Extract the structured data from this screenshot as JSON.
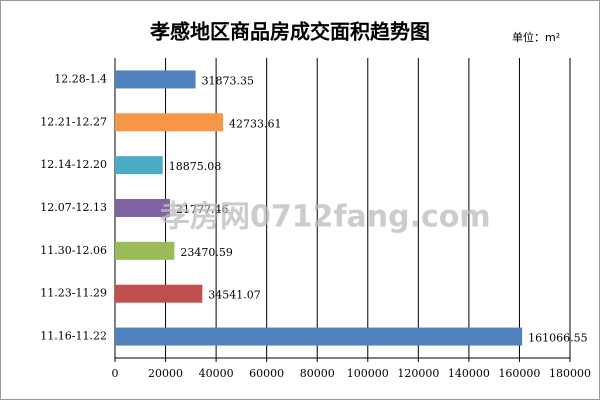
{
  "chart_data": {
    "type": "bar",
    "orientation": "horizontal",
    "title": "孝感地区商品房成交面积趋势图",
    "unit": "单位：m²",
    "watermark": "孝房网0712fang.com",
    "categories": [
      "12.28-1.4",
      "12.21-12.27",
      "12.14-12.20",
      "12.07-12.13",
      "11.30-12.06",
      "11.23-11.29",
      "11.16-11.22"
    ],
    "values": [
      31873.35,
      42733.61,
      18875.08,
      21777.46,
      23470.59,
      34541.07,
      161066.55
    ],
    "colors": [
      "#4f81bd",
      "#f79646",
      "#4bacc6",
      "#8064a2",
      "#9bbb59",
      "#c0504d",
      "#4f81bd"
    ],
    "xlim": [
      0,
      180000
    ],
    "xticks": [
      0,
      20000,
      40000,
      60000,
      80000,
      100000,
      120000,
      140000,
      160000,
      180000
    ],
    "grid": true
  }
}
